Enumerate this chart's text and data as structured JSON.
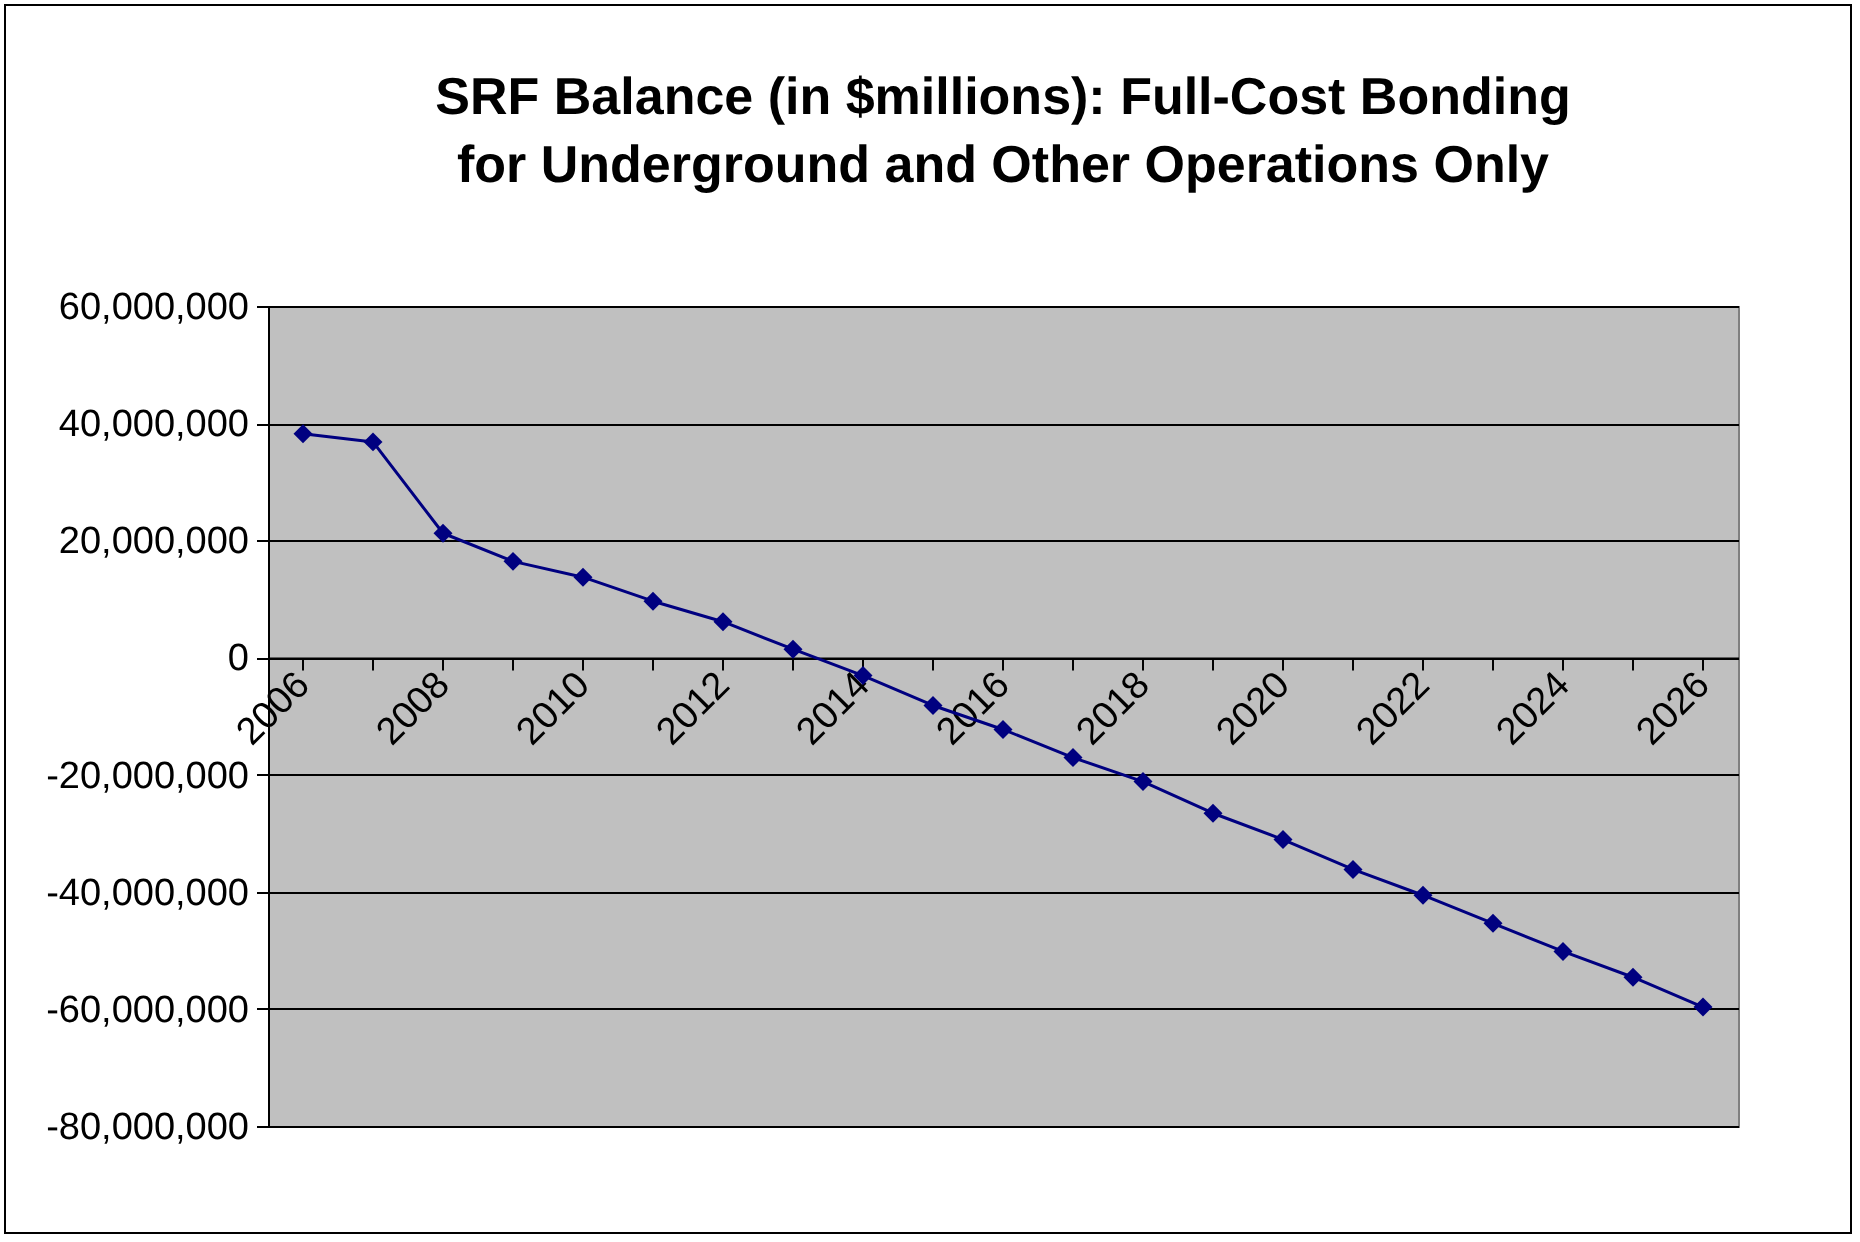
{
  "chart_data": {
    "type": "line",
    "title": "SRF Balance (in $millions): Full-Cost Bonding for Underground and Other Operations Only",
    "categories": [
      "2006",
      null,
      "2008",
      null,
      "2010",
      null,
      "2012",
      null,
      "2014",
      null,
      "2016",
      null,
      "2018",
      null,
      "2020",
      null,
      "2022",
      null,
      "2024",
      null,
      "2026"
    ],
    "series": [
      {
        "color": "#000080",
        "values": [
          38200000,
          36800000,
          21200000,
          16400000,
          13700000,
          9600000,
          6100000,
          1400000,
          -3100000,
          -8200000,
          -12300000,
          -17100000,
          -21200000,
          -26600000,
          -31100000,
          -36200000,
          -40600000,
          -45400000,
          -50200000,
          -54600000,
          -59700000
        ]
      }
    ],
    "ylim": [
      -80000000,
      60000000
    ],
    "yticks": [
      {
        "value": -80000000,
        "label": "-80,000,000"
      },
      {
        "value": -60000000,
        "label": "-60,000,000"
      },
      {
        "value": -40000000,
        "label": "-40,000,000"
      },
      {
        "value": -20000000,
        "label": "-20,000,000"
      },
      0,
      {
        "value": 20000000,
        "label": "20,000,000"
      },
      {
        "value": 40000000,
        "label": "40,000,000"
      },
      {
        "value": 60000000,
        "label": "60,000,000"
      }
    ],
    "grid": "y",
    "marker": "diamond",
    "line_style": "solid"
  }
}
